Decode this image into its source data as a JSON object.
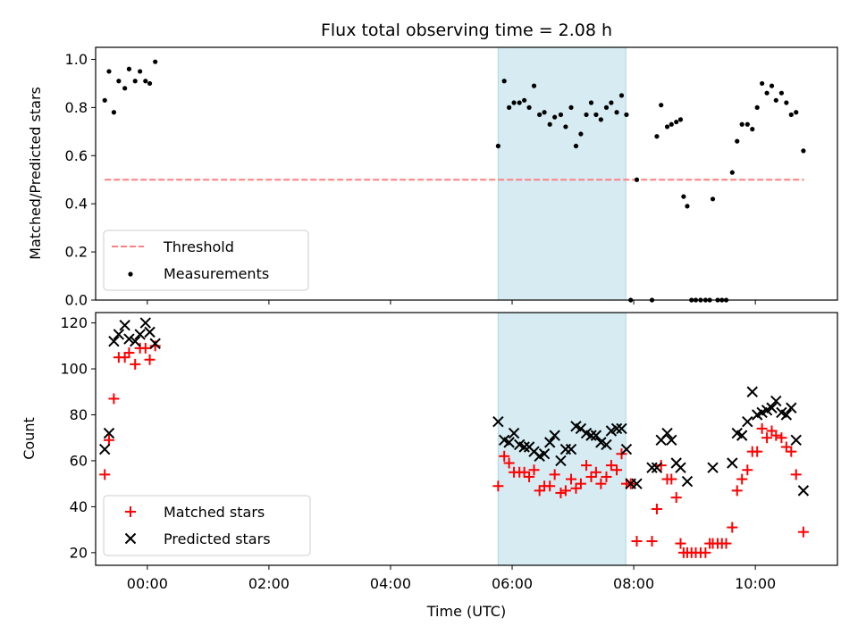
{
  "chart_data": [
    {
      "type": "scatter",
      "title": "Flux total observing time = 2.08 h",
      "ylabel": "Matched/Predicted stars",
      "xlim": [
        -0.85,
        11.35
      ],
      "ylim": [
        0,
        1.05
      ],
      "xticks": [
        0,
        2,
        4,
        6,
        8,
        10
      ],
      "yticks": [
        0.0,
        0.2,
        0.4,
        0.6,
        0.8,
        1.0
      ],
      "ytick_labels": [
        "0.0",
        "0.2",
        "0.4",
        "0.6",
        "0.8",
        "1.0"
      ],
      "highlight_span": [
        5.77,
        7.87
      ],
      "legend_position": "lower-left",
      "threshold": {
        "name": "Threshold",
        "value": 0.5,
        "x_range": [
          -0.7,
          10.8
        ],
        "color": "#ff7f7f"
      },
      "series": [
        {
          "name": "Measurements",
          "color": "#000000",
          "points": [
            [
              -0.7,
              0.83
            ],
            [
              -0.63,
              0.95
            ],
            [
              -0.55,
              0.78
            ],
            [
              -0.47,
              0.91
            ],
            [
              -0.37,
              0.88
            ],
            [
              -0.3,
              0.96
            ],
            [
              -0.2,
              0.91
            ],
            [
              -0.12,
              0.95
            ],
            [
              -0.03,
              0.91
            ],
            [
              0.04,
              0.9
            ],
            [
              0.13,
              0.99
            ],
            [
              5.77,
              0.64
            ],
            [
              5.87,
              0.91
            ],
            [
              5.95,
              0.8
            ],
            [
              6.03,
              0.82
            ],
            [
              6.12,
              0.82
            ],
            [
              6.2,
              0.83
            ],
            [
              6.28,
              0.8
            ],
            [
              6.36,
              0.89
            ],
            [
              6.45,
              0.77
            ],
            [
              6.53,
              0.78
            ],
            [
              6.62,
              0.73
            ],
            [
              6.7,
              0.76
            ],
            [
              6.8,
              0.77
            ],
            [
              6.88,
              0.72
            ],
            [
              6.97,
              0.8
            ],
            [
              7.05,
              0.64
            ],
            [
              7.13,
              0.69
            ],
            [
              7.22,
              0.77
            ],
            [
              7.3,
              0.82
            ],
            [
              7.38,
              0.77
            ],
            [
              7.46,
              0.75
            ],
            [
              7.55,
              0.8
            ],
            [
              7.63,
              0.82
            ],
            [
              7.72,
              0.78
            ],
            [
              7.8,
              0.85
            ],
            [
              7.88,
              0.77
            ],
            [
              7.95,
              0.0
            ],
            [
              8.05,
              0.5
            ],
            [
              8.3,
              0.0
            ],
            [
              8.38,
              0.68
            ],
            [
              8.45,
              0.81
            ],
            [
              8.55,
              0.72
            ],
            [
              8.62,
              0.73
            ],
            [
              8.7,
              0.74
            ],
            [
              8.77,
              0.75
            ],
            [
              8.82,
              0.43
            ],
            [
              8.88,
              0.39
            ],
            [
              8.95,
              0.0
            ],
            [
              9.02,
              0.0
            ],
            [
              9.1,
              0.0
            ],
            [
              9.18,
              0.0
            ],
            [
              9.25,
              0.0
            ],
            [
              9.3,
              0.42
            ],
            [
              9.38,
              0.0
            ],
            [
              9.45,
              0.0
            ],
            [
              9.52,
              0.0
            ],
            [
              9.62,
              0.53
            ],
            [
              9.7,
              0.66
            ],
            [
              9.78,
              0.73
            ],
            [
              9.87,
              0.73
            ],
            [
              9.95,
              0.71
            ],
            [
              10.03,
              0.8
            ],
            [
              10.11,
              0.9
            ],
            [
              10.19,
              0.86
            ],
            [
              10.27,
              0.89
            ],
            [
              10.34,
              0.83
            ],
            [
              10.43,
              0.86
            ],
            [
              10.51,
              0.82
            ],
            [
              10.59,
              0.77
            ],
            [
              10.67,
              0.78
            ],
            [
              10.79,
              0.62
            ]
          ]
        }
      ]
    },
    {
      "type": "scatter",
      "xlabel": "Time (UTC)",
      "ylabel": "Count",
      "xlim": [
        -0.85,
        11.35
      ],
      "ylim": [
        14.5,
        124.5
      ],
      "xticks": [
        0,
        2,
        4,
        6,
        8,
        10
      ],
      "xtick_labels": [
        "00:00",
        "02:00",
        "04:00",
        "06:00",
        "08:00",
        "10:00"
      ],
      "yticks": [
        20,
        40,
        60,
        80,
        100,
        120
      ],
      "ytick_labels": [
        "20",
        "40",
        "60",
        "80",
        "100",
        "120"
      ],
      "highlight_span": [
        5.77,
        7.87
      ],
      "legend_position": "lower-left",
      "series": [
        {
          "name": "Matched stars",
          "marker": "plus",
          "color": "#ff0000",
          "points": [
            [
              -0.7,
              54
            ],
            [
              -0.63,
              69
            ],
            [
              -0.55,
              87
            ],
            [
              -0.47,
              105
            ],
            [
              -0.37,
              105
            ],
            [
              -0.3,
              107
            ],
            [
              -0.2,
              102
            ],
            [
              -0.12,
              109
            ],
            [
              -0.03,
              109
            ],
            [
              0.04,
              104
            ],
            [
              0.13,
              110
            ],
            [
              5.77,
              49
            ],
            [
              5.87,
              62
            ],
            [
              5.95,
              59
            ],
            [
              6.03,
              55
            ],
            [
              6.12,
              55
            ],
            [
              6.2,
              55
            ],
            [
              6.28,
              53
            ],
            [
              6.36,
              56
            ],
            [
              6.45,
              47
            ],
            [
              6.53,
              49
            ],
            [
              6.62,
              49
            ],
            [
              6.7,
              54
            ],
            [
              6.8,
              46
            ],
            [
              6.88,
              47
            ],
            [
              6.97,
              52
            ],
            [
              7.05,
              48
            ],
            [
              7.13,
              50
            ],
            [
              7.22,
              58
            ],
            [
              7.3,
              53
            ],
            [
              7.38,
              55
            ],
            [
              7.46,
              50
            ],
            [
              7.55,
              53
            ],
            [
              7.63,
              58
            ],
            [
              7.72,
              56
            ],
            [
              7.8,
              63
            ],
            [
              7.88,
              50
            ],
            [
              7.95,
              50
            ],
            [
              8.05,
              25
            ],
            [
              8.3,
              25
            ],
            [
              8.38,
              39
            ],
            [
              8.45,
              58
            ],
            [
              8.55,
              52
            ],
            [
              8.62,
              52
            ],
            [
              8.7,
              44
            ],
            [
              8.77,
              24
            ],
            [
              8.82,
              20
            ],
            [
              8.88,
              20
            ],
            [
              8.95,
              20
            ],
            [
              9.02,
              20
            ],
            [
              9.1,
              20
            ],
            [
              9.18,
              20
            ],
            [
              9.25,
              24
            ],
            [
              9.3,
              24
            ],
            [
              9.38,
              24
            ],
            [
              9.45,
              24
            ],
            [
              9.52,
              24
            ],
            [
              9.62,
              31
            ],
            [
              9.7,
              47
            ],
            [
              9.78,
              52
            ],
            [
              9.87,
              56
            ],
            [
              9.95,
              64
            ],
            [
              10.03,
              64
            ],
            [
              10.11,
              74
            ],
            [
              10.19,
              70
            ],
            [
              10.27,
              73
            ],
            [
              10.34,
              71
            ],
            [
              10.43,
              70
            ],
            [
              10.51,
              66
            ],
            [
              10.59,
              64
            ],
            [
              10.67,
              54
            ],
            [
              10.79,
              29
            ]
          ]
        },
        {
          "name": "Predicted stars",
          "marker": "x",
          "color": "#000000",
          "points": [
            [
              -0.7,
              65
            ],
            [
              -0.63,
              72
            ],
            [
              -0.55,
              112
            ],
            [
              -0.47,
              115
            ],
            [
              -0.37,
              119
            ],
            [
              -0.3,
              113
            ],
            [
              -0.2,
              112
            ],
            [
              -0.12,
              115
            ],
            [
              -0.03,
              120
            ],
            [
              0.04,
              116
            ],
            [
              0.13,
              111
            ],
            [
              5.77,
              77
            ],
            [
              5.87,
              69
            ],
            [
              5.95,
              68
            ],
            [
              6.03,
              72
            ],
            [
              6.12,
              67
            ],
            [
              6.2,
              66
            ],
            [
              6.28,
              66
            ],
            [
              6.36,
              64
            ],
            [
              6.45,
              62
            ],
            [
              6.53,
              63
            ],
            [
              6.62,
              68
            ],
            [
              6.7,
              71
            ],
            [
              6.8,
              60
            ],
            [
              6.88,
              65
            ],
            [
              6.97,
              65
            ],
            [
              7.05,
              75
            ],
            [
              7.13,
              74
            ],
            [
              7.22,
              72
            ],
            [
              7.3,
              71
            ],
            [
              7.38,
              71
            ],
            [
              7.46,
              68
            ],
            [
              7.55,
              67
            ],
            [
              7.63,
              73
            ],
            [
              7.72,
              74
            ],
            [
              7.8,
              74
            ],
            [
              7.88,
              65
            ],
            [
              7.95,
              50
            ],
            [
              8.05,
              50
            ],
            [
              8.3,
              57
            ],
            [
              8.38,
              57
            ],
            [
              8.45,
              69
            ],
            [
              8.55,
              72
            ],
            [
              8.62,
              69
            ],
            [
              8.7,
              59
            ],
            [
              8.77,
              57
            ],
            [
              8.88,
              51
            ],
            [
              9.3,
              57
            ],
            [
              9.62,
              59
            ],
            [
              9.7,
              72
            ],
            [
              9.78,
              71
            ],
            [
              9.87,
              77
            ],
            [
              9.95,
              90
            ],
            [
              10.03,
              80
            ],
            [
              10.11,
              81
            ],
            [
              10.19,
              82
            ],
            [
              10.27,
              83
            ],
            [
              10.34,
              86
            ],
            [
              10.43,
              81
            ],
            [
              10.51,
              80
            ],
            [
              10.59,
              83
            ],
            [
              10.67,
              69
            ],
            [
              10.79,
              47
            ]
          ]
        }
      ]
    }
  ]
}
